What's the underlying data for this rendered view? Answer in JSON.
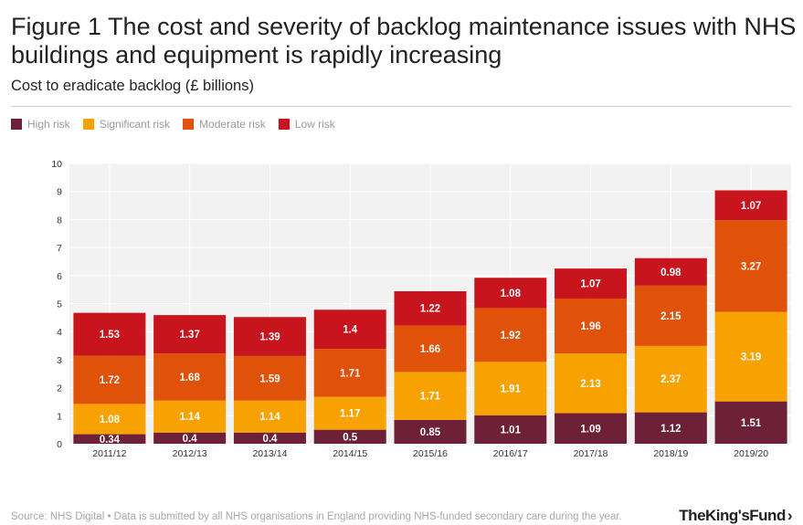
{
  "header": {
    "title": "Figure 1 The cost and severity of backlog maintenance issues with NHS buildings and equipment is rapidly increasing",
    "subtitle": "Cost to eradicate backlog (£ billions)"
  },
  "legend": [
    {
      "label": "High risk",
      "color": "#6e2038"
    },
    {
      "label": "Significant risk",
      "color": "#f7a200"
    },
    {
      "label": "Moderate risk",
      "color": "#e0520a"
    },
    {
      "label": "Low risk",
      "color": "#c8141c"
    }
  ],
  "chart_data": {
    "type": "bar",
    "stacked": true,
    "title": "Cost to eradicate backlog (£ billions)",
    "xlabel": "",
    "ylabel": "",
    "ylim": [
      0,
      10
    ],
    "yticks": [
      0,
      1,
      2,
      3,
      4,
      5,
      6,
      7,
      8,
      9,
      10
    ],
    "grid": true,
    "categories": [
      "2011/12",
      "2012/13",
      "2013/14",
      "2014/15",
      "2015/16",
      "2016/17",
      "2017/18",
      "2018/19",
      "2019/20"
    ],
    "series": [
      {
        "name": "High risk",
        "color": "#6e2038",
        "values": [
          0.34,
          0.4,
          0.4,
          0.5,
          0.85,
          1.01,
          1.09,
          1.12,
          1.51
        ]
      },
      {
        "name": "Significant risk",
        "color": "#f7a200",
        "values": [
          1.08,
          1.14,
          1.14,
          1.17,
          1.71,
          1.91,
          2.13,
          2.37,
          3.19
        ]
      },
      {
        "name": "Moderate risk",
        "color": "#e0520a",
        "values": [
          1.72,
          1.68,
          1.59,
          1.71,
          1.66,
          1.92,
          1.96,
          2.15,
          3.27
        ]
      },
      {
        "name": "Low risk",
        "color": "#c8141c",
        "values": [
          1.53,
          1.37,
          1.39,
          1.4,
          1.22,
          1.08,
          1.07,
          0.98,
          1.07
        ]
      }
    ]
  },
  "footer": {
    "source": "Source: NHS Digital • Data is submitted by all NHS organisations in England providing NHS-funded secondary care during the year.",
    "logo": "TheKing'sFund",
    "logo_mark": "›"
  }
}
